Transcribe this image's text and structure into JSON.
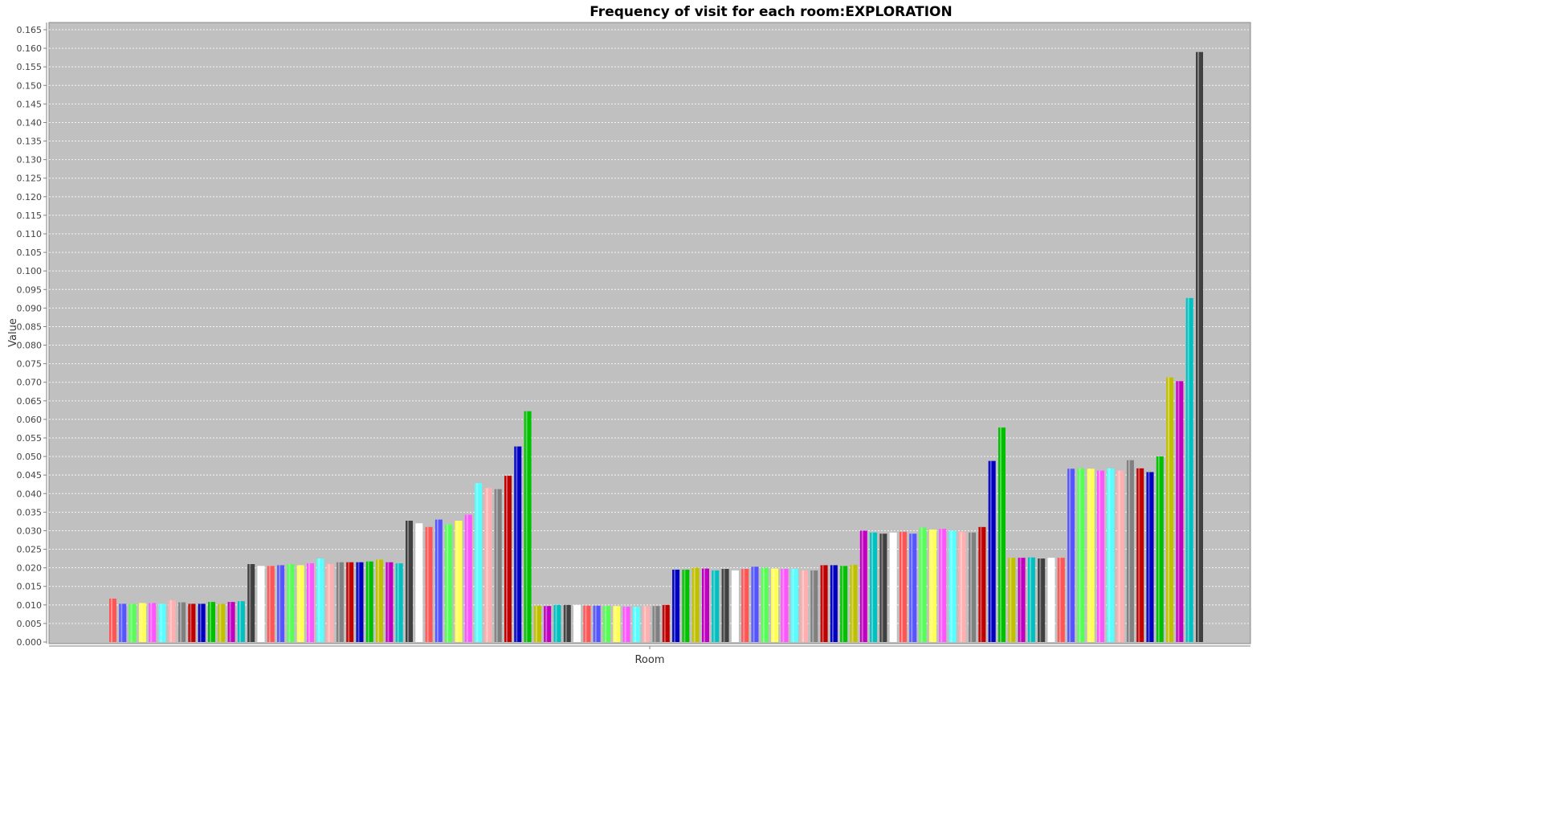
{
  "chart_data": {
    "type": "bar",
    "title": "Frequency of visit for each room:EXPLORATION",
    "xlabel": "Room",
    "ylabel": "Value",
    "ylim": [
      0,
      0.165
    ],
    "ytick_step": 0.005,
    "grid": true,
    "legend": "none",
    "plot_background": "#c0c0c0",
    "bar_colors": [
      "#ff5555",
      "#5555ff",
      "#55ff55",
      "#ffff55",
      "#ff55ff",
      "#55ffff",
      "#ffafaf",
      "#808080",
      "#c00000",
      "#0000c0",
      "#00c000",
      "#c0c000",
      "#c000c0",
      "#00c0c0",
      "#404040",
      "#ffffff"
    ],
    "values": [
      0.0117,
      0.0103,
      0.0103,
      0.0105,
      0.0105,
      0.0103,
      0.0113,
      0.0107,
      0.0103,
      0.0103,
      0.0108,
      0.0103,
      0.0108,
      0.011,
      0.021,
      0.0205,
      0.0205,
      0.0207,
      0.021,
      0.0207,
      0.0212,
      0.0225,
      0.021,
      0.0215,
      0.0215,
      0.0215,
      0.0217,
      0.0222,
      0.0215,
      0.0212,
      0.0327,
      0.032,
      0.031,
      0.033,
      0.0317,
      0.0327,
      0.0343,
      0.0428,
      0.0415,
      0.0412,
      0.0448,
      0.0527,
      0.0622,
      0.0098,
      0.0097,
      0.01,
      0.01,
      0.01,
      0.0098,
      0.0098,
      0.0097,
      0.0097,
      0.0095,
      0.0095,
      0.0097,
      0.0097,
      0.01,
      0.0195,
      0.0195,
      0.02,
      0.0198,
      0.0193,
      0.0197,
      0.0193,
      0.0197,
      0.0203,
      0.02,
      0.0198,
      0.0197,
      0.0197,
      0.0193,
      0.0193,
      0.0207,
      0.0207,
      0.0205,
      0.0208,
      0.03,
      0.0295,
      0.0292,
      0.0295,
      0.0297,
      0.0292,
      0.0308,
      0.0303,
      0.0305,
      0.03,
      0.0297,
      0.0295,
      0.031,
      0.0488,
      0.0578,
      0.0227,
      0.0227,
      0.0228,
      0.0225,
      0.0227,
      0.0227,
      0.0467,
      0.0468,
      0.0467,
      0.0462,
      0.0468,
      0.0462,
      0.049,
      0.0468,
      0.0458,
      0.05,
      0.0713,
      0.0703,
      0.0927,
      0.159
    ]
  }
}
